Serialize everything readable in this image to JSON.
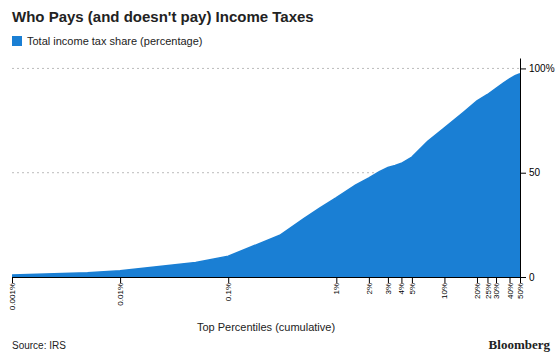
{
  "chart_data": {
    "type": "area",
    "title": "Who Pays (and doesn't pay) Income Taxes",
    "x_label": "Top Percentiles (cumulative)",
    "annotations": [
      "Source: IRS",
      "Bloomberg"
    ],
    "x": [
      0.001,
      0.005,
      0.01,
      0.05,
      0.1,
      0.3,
      0.5,
      0.7,
      1.0,
      1.5,
      2.0,
      2.5,
      3.0,
      3.5,
      4.0,
      5.0,
      7.0,
      10.0,
      15.0,
      20.0,
      25.0,
      30.0,
      35.0,
      40.0,
      45.0,
      50.0
    ],
    "series": [
      {
        "name": "Total income tax share (percentage)",
        "color": "#1a7fd4",
        "values": [
          1.0,
          2.0,
          3.0,
          7.0,
          10.0,
          20.0,
          28.0,
          33.0,
          38.0,
          44.0,
          47.5,
          50.5,
          52.5,
          53.5,
          54.5,
          57.5,
          65.0,
          71.5,
          79.0,
          84.5,
          87.5,
          90.5,
          93.0,
          95.0,
          96.5,
          97.5
        ]
      }
    ],
    "log": "x",
    "xlim": [
      0.001,
      50
    ],
    "xticks": [
      {
        "value": 0.001,
        "label": "0.001%"
      },
      {
        "value": 0.01,
        "label": "0.01%"
      },
      {
        "value": 0.1,
        "label": "0.1%"
      },
      {
        "value": 1,
        "label": "1%"
      },
      {
        "value": 2,
        "label": "2%"
      },
      {
        "value": 3,
        "label": "3%"
      },
      {
        "value": 4,
        "label": "4%"
      },
      {
        "value": 5,
        "label": "5%"
      },
      {
        "value": 10,
        "label": "10%"
      },
      {
        "value": 20,
        "label": "20%"
      },
      {
        "value": 25,
        "label": "25%"
      },
      {
        "value": 30,
        "label": "30%"
      },
      {
        "value": 40,
        "label": "40%"
      },
      {
        "value": 50,
        "label": "50%"
      }
    ],
    "ylim": [
      0,
      105
    ],
    "yticks": [
      0,
      50,
      {
        "value": 100,
        "label": "100%"
      }
    ],
    "grid": true,
    "legend": "top-left"
  }
}
